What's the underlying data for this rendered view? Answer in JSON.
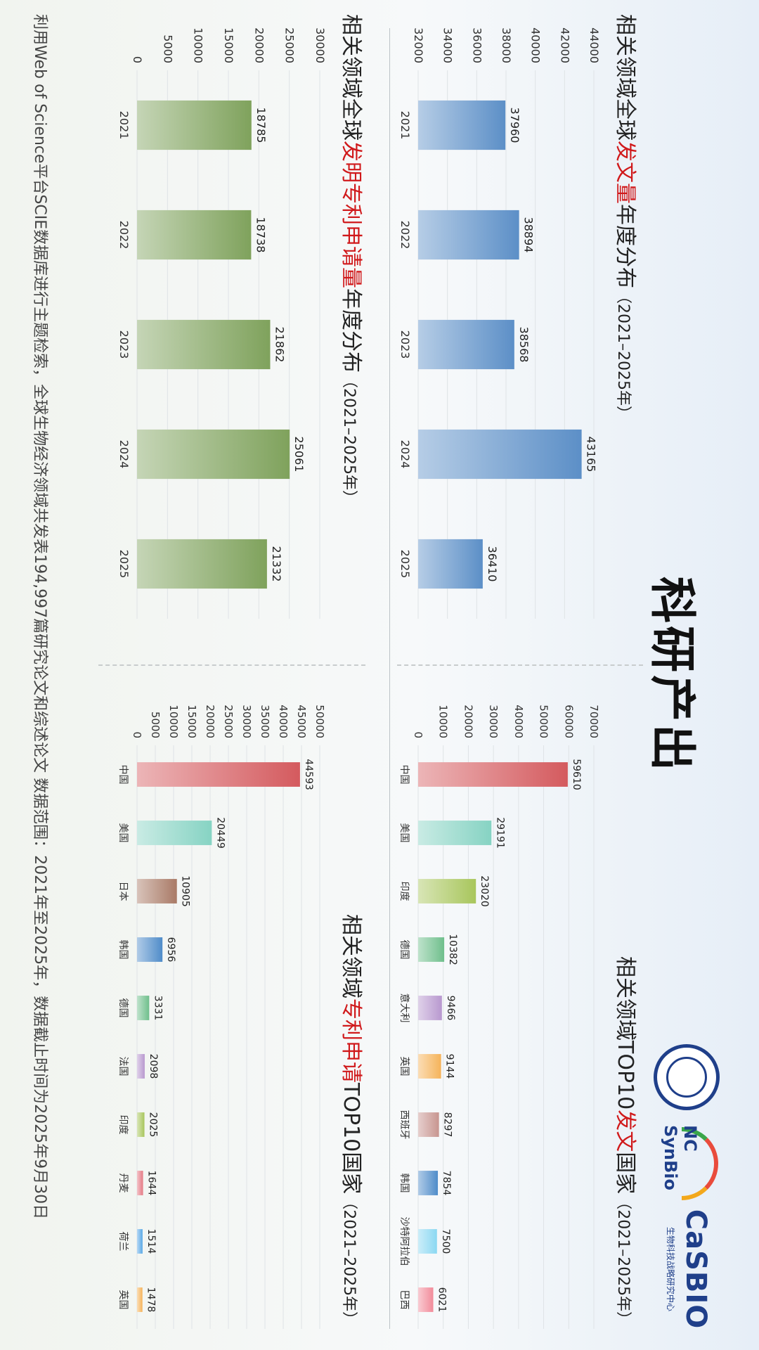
{
  "page": {
    "title": "科研产出",
    "footnote": "利用Web of Science平台SCIE数据库进行主题检索，全球生物经济领域共发表194,997篇研究论文和综述论文  数据范围：2021年至2025年，数据截止时间为2025年9月30日"
  },
  "logos": {
    "casbio_text": "CaSBIO",
    "casbio_sub": "生物科技战略研究中心",
    "ncsynbio_text": "NC SynBio"
  },
  "panels": {
    "p1": {
      "pre": "相关领域全球",
      "hl": "发文量",
      "post": "年度分布",
      "paren": "（2021–2025年）"
    },
    "p2": {
      "pre": "相关领域TOP10",
      "hl": "发文",
      "post": "国家",
      "paren": "（2021–2025年）"
    },
    "p3": {
      "pre": "相关领域全球",
      "hl": "发明专利申请量",
      "post": "年度分布",
      "paren": "（2021–2025年）"
    },
    "p4": {
      "pre": "相关领域",
      "hl": "专利申请",
      "post": "TOP10国家",
      "paren": "（2021–2025年）"
    }
  },
  "chart_data": [
    {
      "type": "bar",
      "title": "相关领域全球发文量年度分布（2021–2025年）",
      "categories": [
        "2021",
        "2022",
        "2023",
        "2024",
        "2025"
      ],
      "values": [
        37960,
        38894,
        38568,
        43165,
        36410
      ],
      "ylim": [
        32000,
        44000
      ],
      "yticks": [
        32000,
        34000,
        36000,
        38000,
        40000,
        42000,
        44000
      ],
      "grid": true,
      "color": "#5c8fc7"
    },
    {
      "type": "bar",
      "title": "相关领域TOP10发文国家（2021–2025年）",
      "categories": [
        "中国",
        "美国",
        "印度",
        "德国",
        "意大利",
        "英国",
        "西班牙",
        "韩国",
        "沙特阿拉伯",
        "巴西"
      ],
      "values": [
        59610,
        29191,
        23020,
        10382,
        9466,
        9144,
        8297,
        7854,
        7500,
        6021
      ],
      "ylim": [
        0,
        70000
      ],
      "yticks": [
        0,
        10000,
        20000,
        30000,
        40000,
        50000,
        60000,
        70000
      ],
      "grid": true,
      "colors": [
        "#d45a5e",
        "#86d3c3",
        "#a8c65c",
        "#6fbf8c",
        "#b898cf",
        "#f5b35a",
        "#c89590",
        "#4f8cc9",
        "#8bd8f2",
        "#f28b9a"
      ]
    },
    {
      "type": "bar",
      "title": "相关领域全球发明专利申请量年度分布（2021–2025年）",
      "categories": [
        "2021",
        "2022",
        "2023",
        "2024",
        "2025"
      ],
      "values": [
        18785,
        18738,
        21862,
        25061,
        21332
      ],
      "ylim": [
        0,
        30000
      ],
      "yticks": [
        0,
        5000,
        10000,
        15000,
        20000,
        25000,
        30000
      ],
      "grid": true,
      "color": "#7fa25c"
    },
    {
      "type": "bar",
      "title": "相关领域专利申请TOP10国家（2021–2025年）",
      "categories": [
        "中国",
        "美国",
        "日本",
        "韩国",
        "德国",
        "法国",
        "印度",
        "丹麦",
        "荷兰",
        "英国"
      ],
      "values": [
        44593,
        20449,
        10905,
        6956,
        3331,
        2098,
        2025,
        1644,
        1514,
        1478
      ],
      "ylim": [
        0,
        50000
      ],
      "yticks": [
        0,
        5000,
        10000,
        15000,
        20000,
        25000,
        30000,
        35000,
        40000,
        45000,
        50000
      ],
      "grid": true,
      "colors": [
        "#d45a5e",
        "#86d3c3",
        "#a97a66",
        "#4f8cc9",
        "#6fbf8c",
        "#b898cf",
        "#a8c65c",
        "#e57a85",
        "#5aa9e6",
        "#f5b35a"
      ]
    }
  ]
}
